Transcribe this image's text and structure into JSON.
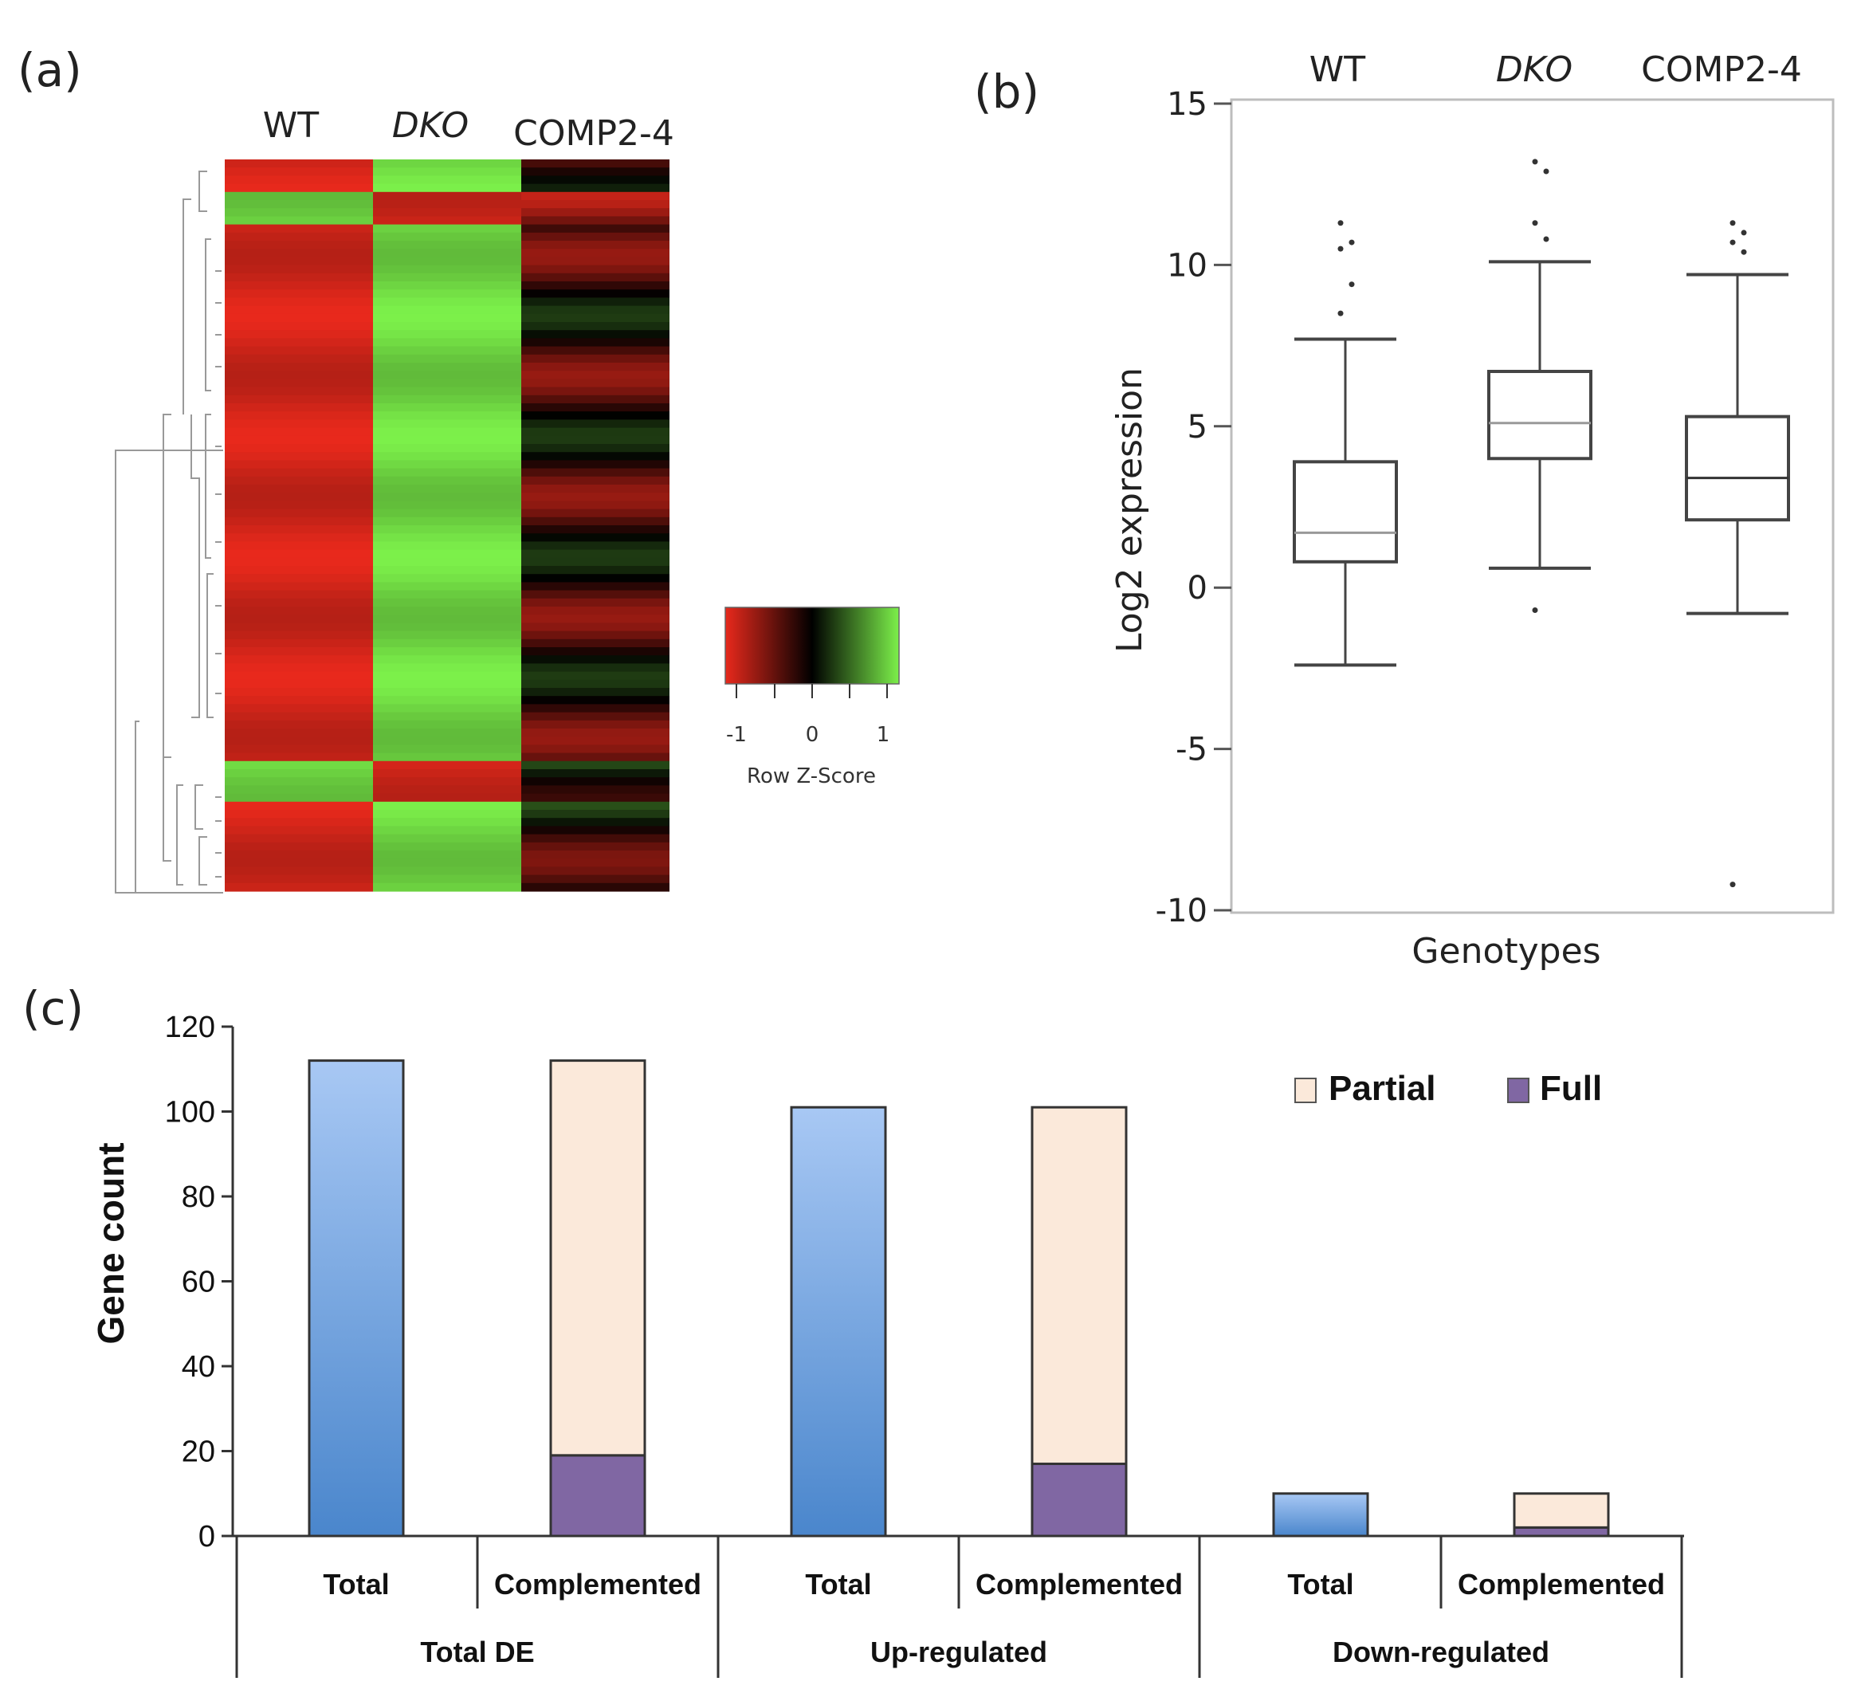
{
  "panels": {
    "a": "(a)",
    "b": "(b)",
    "c": "(c)"
  },
  "chart_data": [
    {
      "type": "heatmap",
      "panel": "(a)",
      "columns": [
        "WT",
        "DKO",
        "COMP2-4"
      ],
      "colorbar": {
        "title": "Row Z-Score",
        "ticks": [
          "-1",
          "0",
          "1"
        ],
        "low_color": "#e8291c",
        "mid_color": "#000000",
        "high_color": "#7cf04a"
      },
      "row_clusters": [
        {
          "rows": 4,
          "values": [
            -1,
            1,
            -0.3
          ]
        },
        {
          "rows": 4,
          "values": [
            1,
            -1,
            -0.4
          ]
        },
        {
          "rows": 66,
          "values": [
            -1,
            1,
            -0.2
          ]
        },
        {
          "rows": 5,
          "values": [
            1,
            -1,
            0.2
          ]
        },
        {
          "rows": 11,
          "values": [
            -1,
            1,
            -0.1
          ]
        }
      ]
    },
    {
      "type": "box",
      "panel": "(b)",
      "title": "",
      "xlabel": "Genotypes",
      "ylabel": "Log2 expression",
      "ylim": [
        -10,
        15
      ],
      "yticks": [
        "15",
        "10",
        "5",
        "0",
        "-5",
        "-10"
      ],
      "categories": [
        "WT",
        "DKO",
        "COMP2-4"
      ],
      "boxes": [
        {
          "name": "WT",
          "whisker_low": -2.4,
          "q1": 0.8,
          "median": 1.7,
          "q3": 3.9,
          "whisker_high": 7.7,
          "outliers": [
            8.5,
            9.4,
            10.5,
            10.7,
            11.3
          ]
        },
        {
          "name": "DKO",
          "whisker_low": 0.6,
          "q1": 4.0,
          "median": 5.1,
          "q3": 6.7,
          "whisker_high": 10.1,
          "outliers": [
            -0.7,
            10.8,
            11.3,
            12.9,
            13.2
          ]
        },
        {
          "name": "COMP2-4",
          "whisker_low": -0.8,
          "q1": 2.1,
          "median": 3.4,
          "q3": 5.3,
          "whisker_high": 9.7,
          "outliers": [
            -9.2,
            10.4,
            10.7,
            11.0,
            11.3
          ]
        }
      ]
    },
    {
      "type": "bar",
      "panel": "(c)",
      "ylabel": "Gene count",
      "ylim": [
        0,
        120
      ],
      "yticks": [
        "0",
        "20",
        "40",
        "60",
        "80",
        "100",
        "120"
      ],
      "groups": [
        "Total DE",
        "Up-regulated",
        "Down-regulated"
      ],
      "categories": [
        "Total",
        "Complemented",
        "Total",
        "Complemented",
        "Total",
        "Complemented"
      ],
      "legend": [
        "Partial",
        "Full"
      ],
      "series": [
        {
          "name": "Total",
          "values": [
            112,
            0,
            101,
            0,
            10,
            0
          ]
        },
        {
          "name": "Full",
          "values": [
            0,
            19,
            0,
            17,
            0,
            2
          ]
        },
        {
          "name": "Partial",
          "values": [
            0,
            93,
            0,
            84,
            0,
            8
          ]
        }
      ],
      "colors": {
        "total_top": "#a8c8f4",
        "total_bottom": "#4a86cc",
        "partial": "#fbe9da",
        "full": "#8067a3"
      }
    }
  ]
}
